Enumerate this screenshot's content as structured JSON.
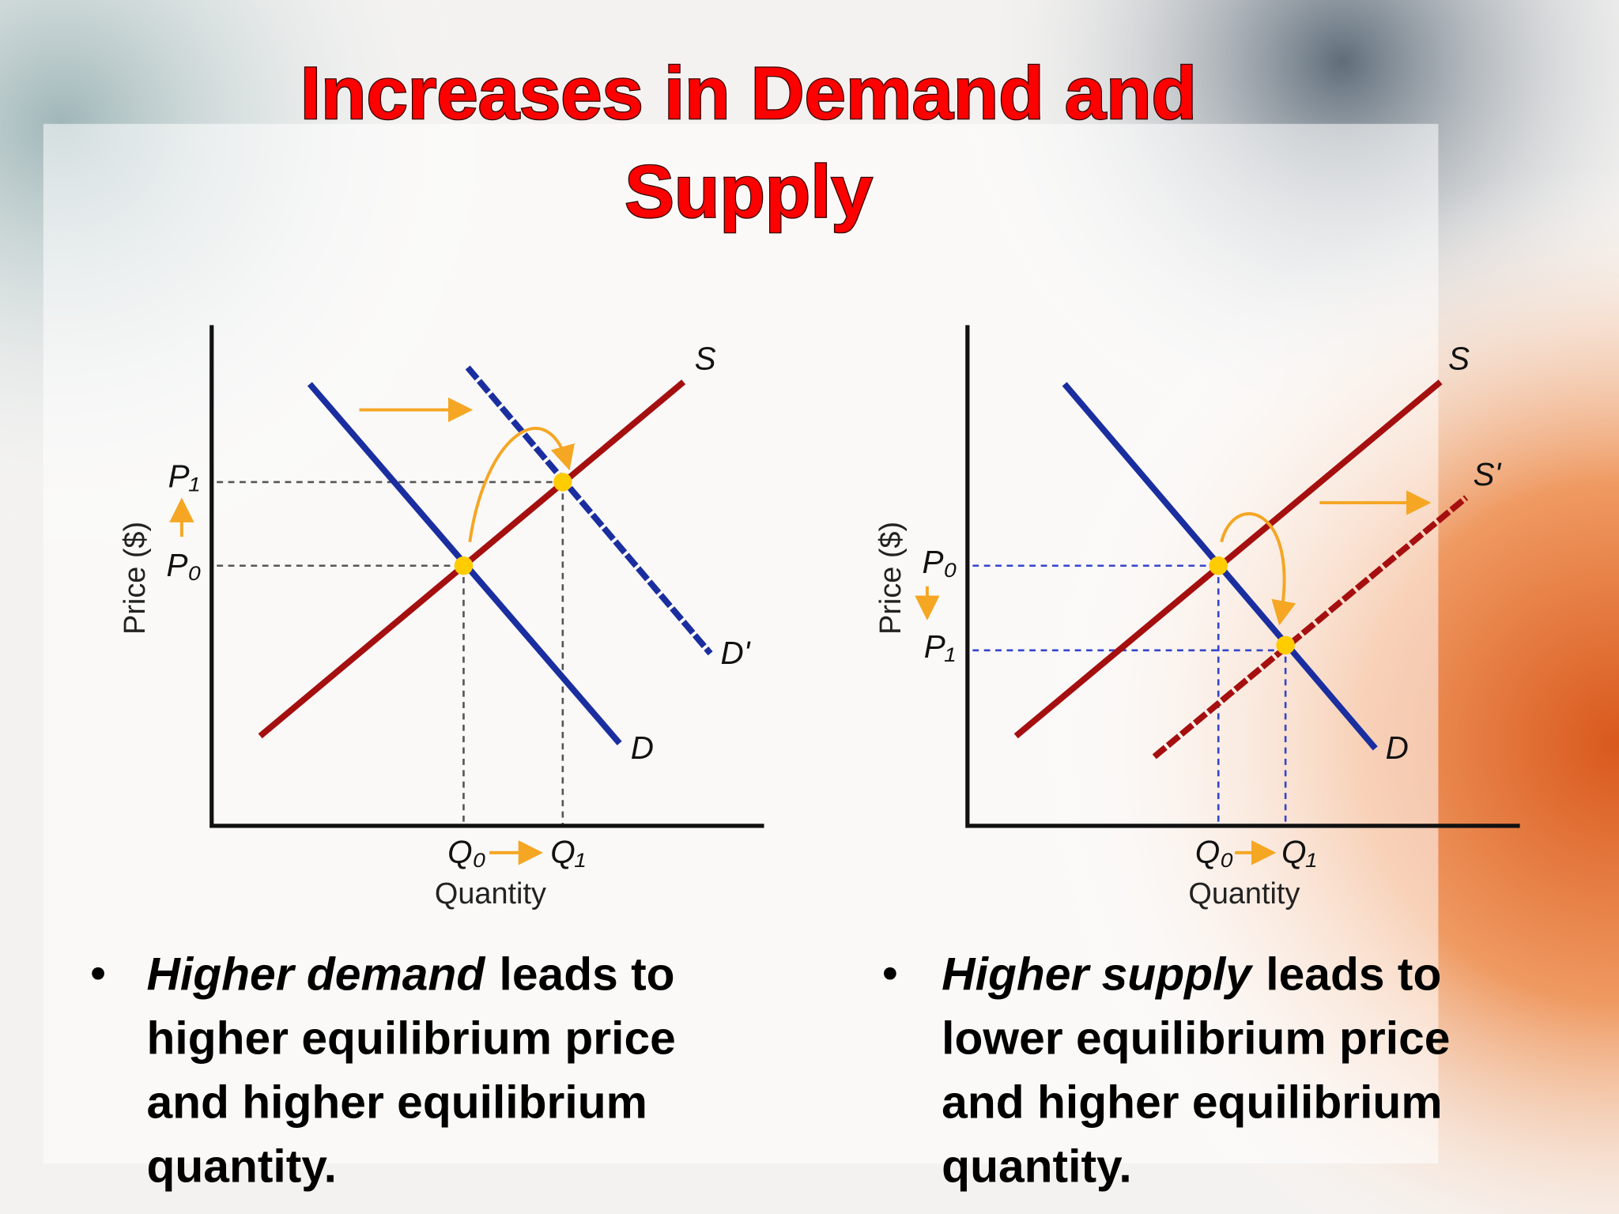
{
  "title": {
    "line1": "Increases in Demand and",
    "line2": "Supply"
  },
  "diagrams": [
    {
      "y_axis_label": "Price ($)",
      "x_axis_label": "Quantity",
      "curves": {
        "supply": "S",
        "demand": "D",
        "shifted": "D'"
      },
      "price_labels": {
        "p0": "P₀",
        "p1": "P₁"
      },
      "quantity_labels": {
        "q0": "Q₀",
        "q1": "Q₁"
      }
    },
    {
      "y_axis_label": "Price ($)",
      "x_axis_label": "Quantity",
      "curves": {
        "supply": "S",
        "demand": "D",
        "shifted": "S'"
      },
      "price_labels": {
        "p0": "P₀",
        "p1": "P₁"
      },
      "quantity_labels": {
        "q0": "Q₀",
        "q1": "Q₁"
      }
    }
  ],
  "bullets": [
    {
      "emphasis": "Higher demand",
      "lines": [
        "leads to",
        "higher equilibrium price",
        "and higher equilibrium",
        "quantity."
      ]
    },
    {
      "emphasis": "Higher supply",
      "lines": [
        "leads to",
        "lower equilibrium price",
        "and higher equilibrium",
        "quantity."
      ]
    }
  ]
}
